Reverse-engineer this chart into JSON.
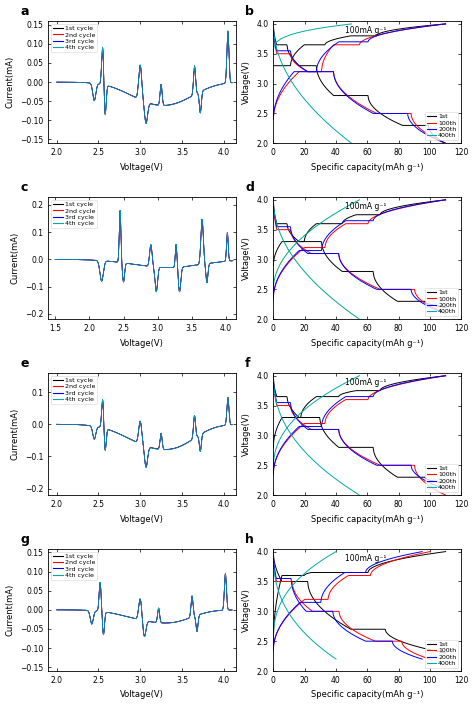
{
  "panels": [
    {
      "label": "a",
      "type": "cv",
      "xlim": [
        1.9,
        4.15
      ],
      "ylim": [
        -0.16,
        0.16
      ],
      "xticks": [
        2.0,
        2.5,
        3.0,
        3.5,
        4.0
      ],
      "yticks": [
        -0.15,
        -0.1,
        -0.05,
        0.0,
        0.05,
        0.1,
        0.15
      ],
      "xlabel": "Voltage(V)",
      "ylabel": "Current(mA)",
      "legend": [
        "1st cycle",
        "2nd cycle",
        "3rd cycle",
        "4th cycle"
      ],
      "legend_colors": [
        "#000000",
        "#ff0000",
        "#0000ff",
        "#00aaaa"
      ],
      "legend_loc": "upper left"
    },
    {
      "label": "b",
      "type": "gcd",
      "xlim": [
        0,
        120
      ],
      "ylim": [
        2.0,
        4.05
      ],
      "xticks": [
        0,
        20,
        40,
        60,
        80,
        100,
        120
      ],
      "yticks": [
        2.0,
        2.5,
        3.0,
        3.5,
        4.0
      ],
      "xlabel": "Specific capacity(mAh g⁻¹)",
      "ylabel": "Voltage(V)",
      "annotation": "100mA g⁻¹",
      "legend": [
        "1st",
        "100th",
        "200th",
        "400th"
      ],
      "legend_colors": [
        "#000000",
        "#ff0000",
        "#0000ff",
        "#00aaaa"
      ],
      "legend_loc": "lower right"
    },
    {
      "label": "c",
      "type": "cv",
      "xlim": [
        1.4,
        4.15
      ],
      "ylim": [
        -0.22,
        0.23
      ],
      "xticks": [
        1.5,
        2.0,
        2.5,
        3.0,
        3.5,
        4.0
      ],
      "yticks": [
        -0.2,
        -0.1,
        0.0,
        0.1,
        0.2
      ],
      "xlabel": "Voltage(V)",
      "ylabel": "Current(mA)",
      "legend": [
        "1st cycle",
        "2nd cycle",
        "3rd cycle",
        "4th cycle"
      ],
      "legend_colors": [
        "#000000",
        "#ff0000",
        "#0000ff",
        "#00aaaa"
      ],
      "legend_loc": "upper left"
    },
    {
      "label": "d",
      "type": "gcd",
      "xlim": [
        0,
        120
      ],
      "ylim": [
        2.0,
        4.05
      ],
      "xticks": [
        0,
        20,
        40,
        60,
        80,
        100,
        120
      ],
      "yticks": [
        2.0,
        2.5,
        3.0,
        3.5,
        4.0
      ],
      "xlabel": "Specific capacity(mAh g⁻¹)",
      "ylabel": "Voltage(V)",
      "annotation": "100mA g⁻¹",
      "legend": [
        "1st",
        "100th",
        "200th",
        "400th"
      ],
      "legend_colors": [
        "#000000",
        "#ff0000",
        "#0000ff",
        "#00aaaa"
      ],
      "legend_loc": "lower right"
    },
    {
      "label": "e",
      "type": "cv",
      "xlim": [
        1.9,
        4.15
      ],
      "ylim": [
        -0.22,
        0.16
      ],
      "xticks": [
        2.0,
        2.5,
        3.0,
        3.5,
        4.0
      ],
      "yticks": [
        -0.2,
        -0.1,
        0.0,
        0.1
      ],
      "xlabel": "Voltage(V)",
      "ylabel": "Current(mA)",
      "legend": [
        "1st cycle",
        "2nd cycle",
        "3rd cycle",
        "4th cycle"
      ],
      "legend_colors": [
        "#000000",
        "#ff0000",
        "#0000ff",
        "#00aaaa"
      ],
      "legend_loc": "upper left"
    },
    {
      "label": "f",
      "type": "gcd",
      "xlim": [
        0,
        120
      ],
      "ylim": [
        2.0,
        4.05
      ],
      "xticks": [
        0,
        20,
        40,
        60,
        80,
        100,
        120
      ],
      "yticks": [
        2.0,
        2.5,
        3.0,
        3.5,
        4.0
      ],
      "xlabel": "Specific capacity(mAh g⁻¹)",
      "ylabel": "Voltage(V)",
      "annotation": "100mA g⁻¹",
      "legend": [
        "1st",
        "100th",
        "200th",
        "400th"
      ],
      "legend_colors": [
        "#000000",
        "#ff0000",
        "#0000ff",
        "#00aaaa"
      ],
      "legend_loc": "lower right"
    },
    {
      "label": "g",
      "type": "cv",
      "xlim": [
        1.9,
        4.15
      ],
      "ylim": [
        -0.16,
        0.16
      ],
      "xticks": [
        2.0,
        2.5,
        3.0,
        3.5,
        4.0
      ],
      "yticks": [
        -0.15,
        -0.1,
        -0.05,
        0.0,
        0.05,
        0.1,
        0.15
      ],
      "xlabel": "Voltage(V)",
      "ylabel": "Current(mA)",
      "legend": [
        "1st cycle",
        "2nd cycle",
        "3rd cycle",
        "4th cycle"
      ],
      "legend_colors": [
        "#000000",
        "#ff0000",
        "#0000ff",
        "#00aaaa"
      ],
      "legend_loc": "upper left"
    },
    {
      "label": "h",
      "type": "gcd",
      "xlim": [
        0,
        120
      ],
      "ylim": [
        2.0,
        4.05
      ],
      "xticks": [
        0,
        20,
        40,
        60,
        80,
        100,
        120
      ],
      "yticks": [
        2.0,
        2.5,
        3.0,
        3.5,
        4.0
      ],
      "xlabel": "Specific capacity(mAh g⁻¹)",
      "ylabel": "Voltage(V)",
      "annotation": "100mA g⁻¹",
      "legend": [
        "1st",
        "100th",
        "200th",
        "400th"
      ],
      "legend_colors": [
        "#000000",
        "#ff0000",
        "#0000ff",
        "#00aaaa"
      ],
      "legend_loc": "lower right"
    }
  ]
}
